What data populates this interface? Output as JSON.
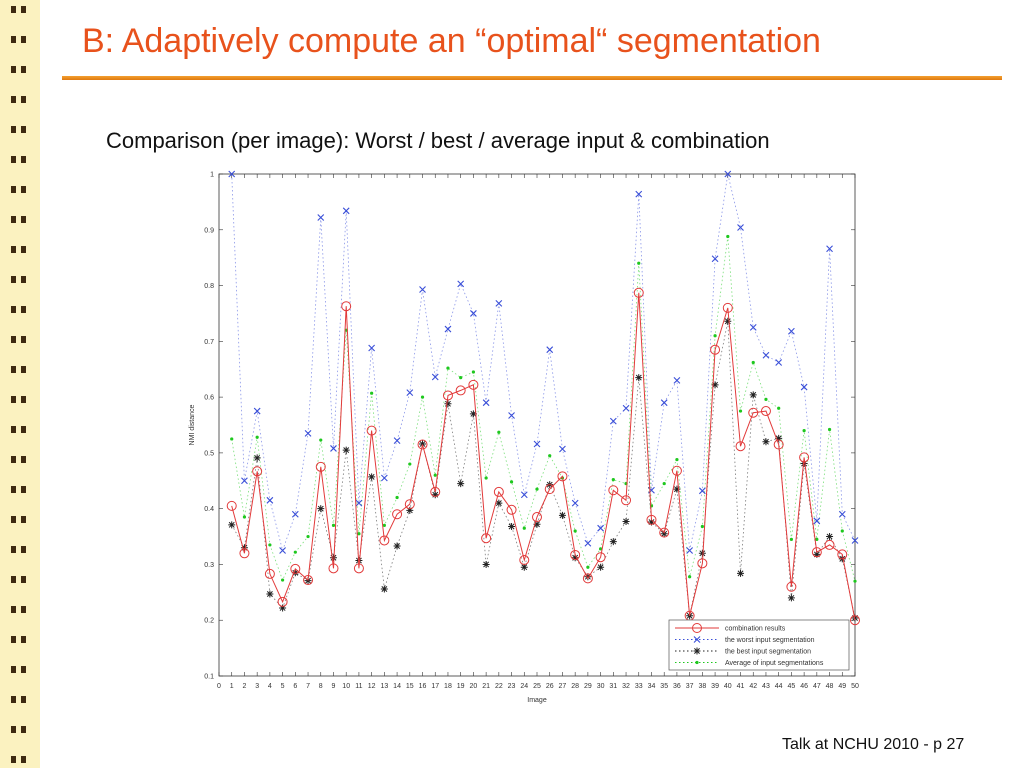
{
  "slide": {
    "title": "B: Adaptively compute an “optimal“ segmentation",
    "subtitle": "Comparison (per image): Worst / best / average input & combination",
    "footer": "Talk at NCHU 2010 - p 27"
  },
  "colors": {
    "title": "#e8521c",
    "rule": "#f0901a",
    "sidebar": "#fbf2c0",
    "combination": "#e23a3a",
    "worst": "#3a4fd8",
    "best": "#222222",
    "average": "#1ec81e"
  },
  "chart_data": {
    "type": "line",
    "xlabel": "Image",
    "ylabel": "NMI distance",
    "xlim": [
      0,
      50
    ],
    "ylim": [
      0.1,
      1
    ],
    "xticks": [
      "0",
      "1",
      "2",
      "3",
      "4",
      "5",
      "6",
      "7",
      "8",
      "9",
      "10",
      "11",
      "12",
      "13",
      "14",
      "15",
      "16",
      "17",
      "18",
      "19",
      "20",
      "21",
      "22",
      "23",
      "24",
      "25",
      "26",
      "27",
      "28",
      "29",
      "30",
      "31",
      "32",
      "33",
      "34",
      "35",
      "36",
      "37",
      "38",
      "39",
      "40",
      "41",
      "42",
      "43",
      "44",
      "45",
      "46",
      "47",
      "48",
      "49",
      "50"
    ],
    "yticks": [
      "0.1",
      "0.2",
      "0.3",
      "0.4",
      "0.5",
      "0.6",
      "0.7",
      "0.8",
      "0.9",
      "1"
    ],
    "legend_position": "bottom-right",
    "x": [
      1,
      2,
      3,
      4,
      5,
      6,
      7,
      8,
      9,
      10,
      11,
      12,
      13,
      14,
      15,
      16,
      17,
      18,
      19,
      20,
      21,
      22,
      23,
      24,
      25,
      26,
      27,
      28,
      29,
      30,
      31,
      32,
      33,
      34,
      35,
      36,
      37,
      38,
      39,
      40,
      41,
      42,
      43,
      44,
      45,
      46,
      47,
      48,
      49,
      50
    ],
    "series": [
      {
        "name": "combination results",
        "marker": "circle",
        "line": "solid",
        "color": "#e23a3a",
        "values": [
          0.405,
          0.32,
          0.467,
          0.283,
          0.233,
          0.292,
          0.272,
          0.475,
          0.293,
          0.763,
          0.293,
          0.54,
          0.343,
          0.39,
          0.408,
          0.515,
          0.43,
          0.603,
          0.612,
          0.622,
          0.347,
          0.43,
          0.398,
          0.308,
          0.385,
          0.435,
          0.458,
          0.317,
          0.275,
          0.313,
          0.433,
          0.415,
          0.787,
          0.38,
          0.357,
          0.468,
          0.208,
          0.302,
          0.685,
          0.76,
          0.512,
          0.572,
          0.575,
          0.515,
          0.26,
          0.492,
          0.322,
          0.335,
          0.318,
          0.2
        ]
      },
      {
        "name": "the worst input segmentation",
        "marker": "x",
        "line": "dotted",
        "color": "#3a4fd8",
        "values": [
          1.0,
          0.45,
          0.575,
          0.415,
          0.325,
          0.39,
          0.535,
          0.922,
          0.508,
          0.934,
          0.41,
          0.688,
          0.455,
          0.522,
          0.608,
          0.793,
          0.636,
          0.722,
          0.803,
          0.75,
          0.59,
          0.768,
          0.567,
          0.425,
          0.516,
          0.685,
          0.507,
          0.41,
          0.338,
          0.365,
          0.557,
          0.58,
          0.964,
          0.433,
          0.59,
          0.63,
          0.325,
          0.432,
          0.848,
          1.0,
          0.904,
          0.725,
          0.675,
          0.662,
          0.718,
          0.618,
          0.378,
          0.866,
          0.39,
          0.343
        ]
      },
      {
        "name": "the best input segmentation",
        "marker": "asterisk",
        "line": "dotted",
        "color": "#222222",
        "values": [
          0.371,
          0.33,
          0.491,
          0.247,
          0.222,
          0.285,
          0.271,
          0.4,
          0.312,
          0.505,
          0.307,
          0.457,
          0.256,
          0.333,
          0.397,
          0.516,
          0.425,
          0.588,
          0.445,
          0.57,
          0.3,
          0.41,
          0.368,
          0.295,
          0.372,
          0.443,
          0.388,
          0.312,
          0.278,
          0.295,
          0.341,
          0.377,
          0.635,
          0.376,
          0.355,
          0.435,
          0.208,
          0.32,
          0.622,
          0.736,
          0.284,
          0.604,
          0.52,
          0.526,
          0.24,
          0.481,
          0.318,
          0.35,
          0.31,
          0.204
        ]
      },
      {
        "name": "Average of input segmentations",
        "marker": "dot",
        "line": "dotted",
        "color": "#1ec81e",
        "values": [
          0.525,
          0.385,
          0.528,
          0.335,
          0.272,
          0.322,
          0.35,
          0.523,
          0.37,
          0.72,
          0.355,
          0.607,
          0.37,
          0.42,
          0.48,
          0.6,
          0.46,
          0.652,
          0.635,
          0.645,
          0.455,
          0.537,
          0.448,
          0.365,
          0.435,
          0.495,
          0.455,
          0.36,
          0.295,
          0.328,
          0.452,
          0.445,
          0.84,
          0.405,
          0.445,
          0.488,
          0.278,
          0.368,
          0.71,
          0.888,
          0.575,
          0.662,
          0.596,
          0.58,
          0.345,
          0.54,
          0.345,
          0.542,
          0.36,
          0.27
        ]
      }
    ]
  }
}
